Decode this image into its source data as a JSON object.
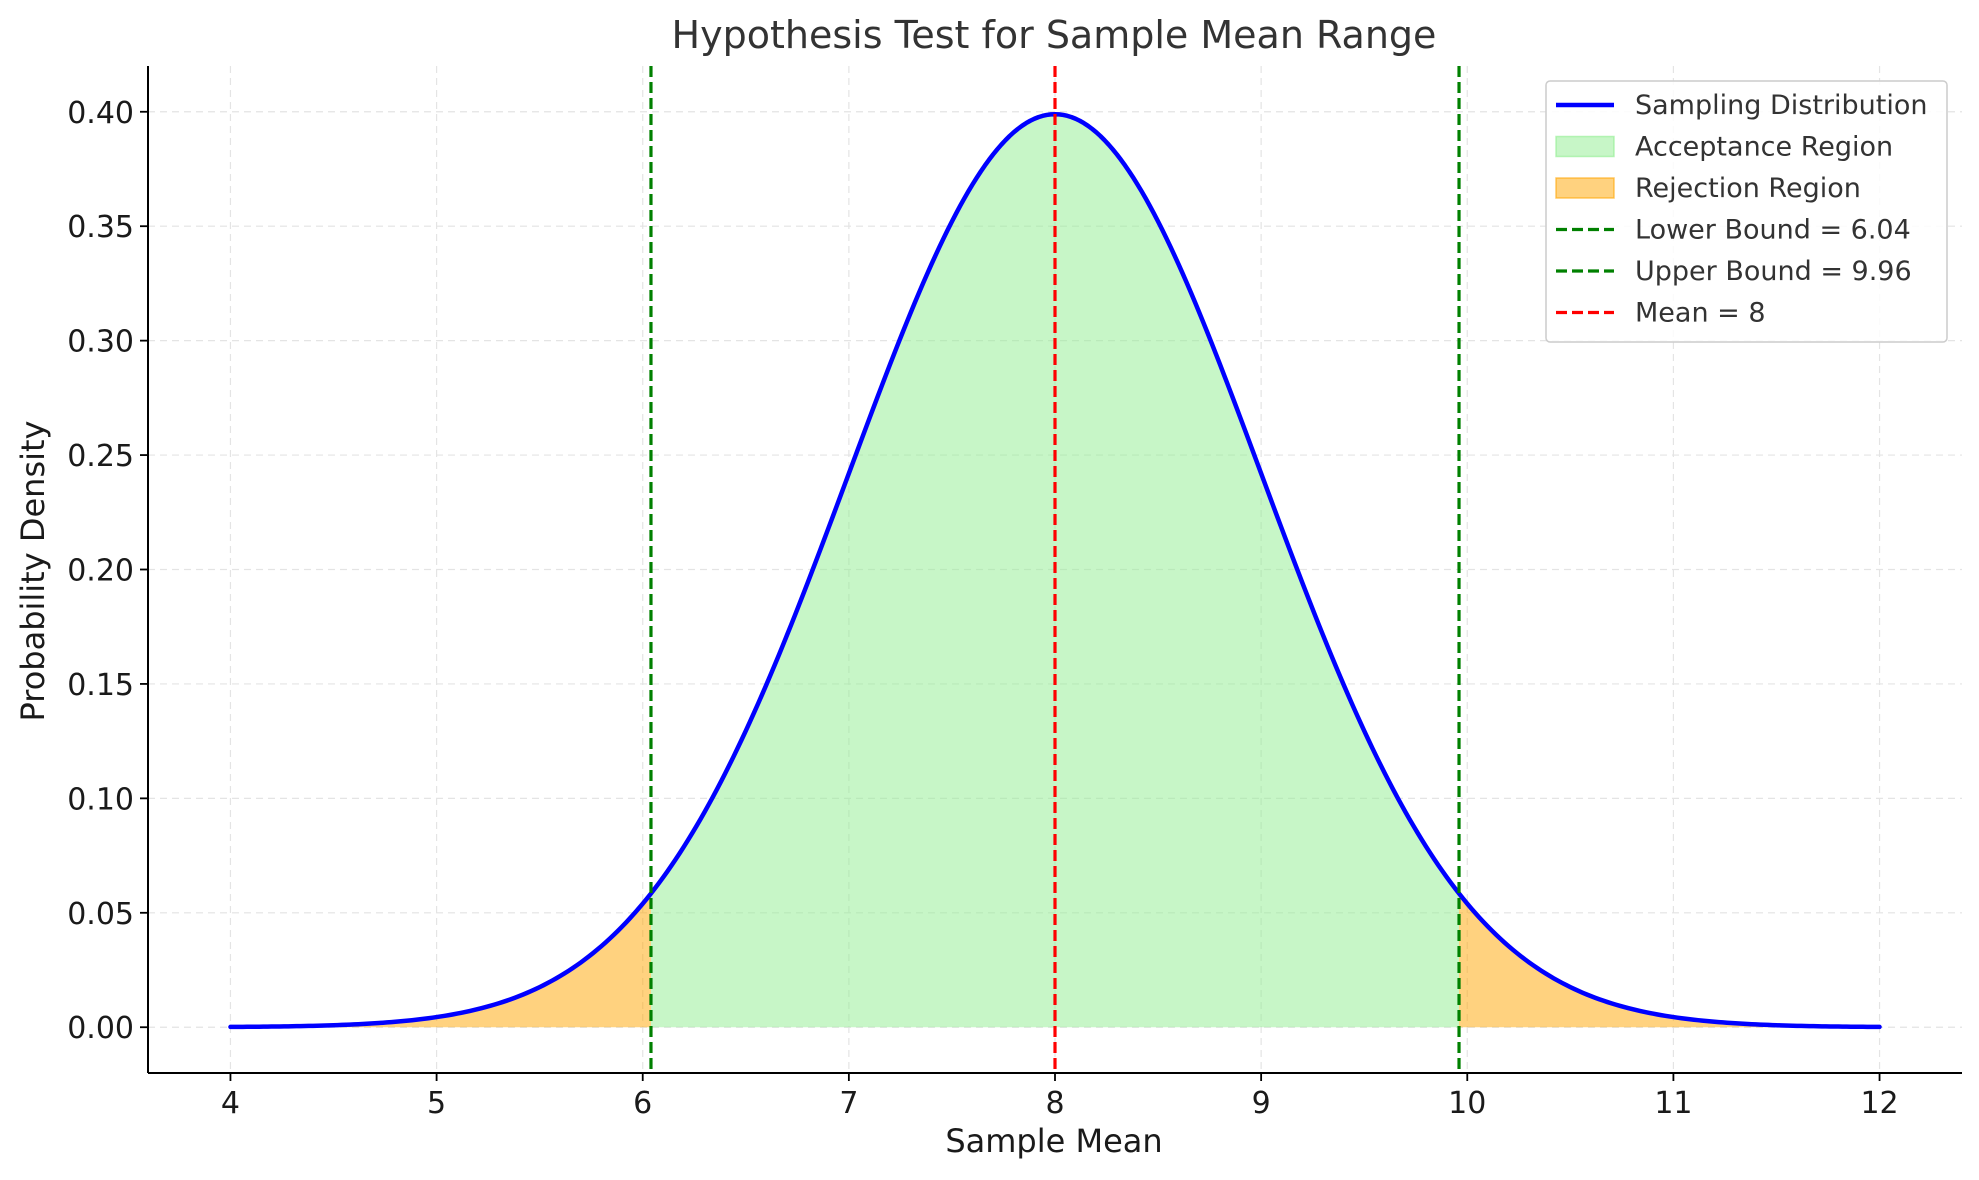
{
  "chart_data": {
    "type": "area",
    "title": "Hypothesis Test for Sample Mean Range",
    "xlabel": "Sample Mean",
    "ylabel": "Probability Density",
    "xlim": [
      3.6,
      12.4
    ],
    "ylim": [
      -0.02,
      0.42
    ],
    "xticks": [
      4,
      5,
      6,
      7,
      8,
      9,
      10,
      11,
      12
    ],
    "yticks": [
      0.0,
      0.05,
      0.1,
      0.15,
      0.2,
      0.25,
      0.3,
      0.35,
      0.4
    ],
    "grid": true,
    "legend_position": "top-right",
    "distribution": {
      "mean": 8,
      "std": 1,
      "x_range": [
        4,
        12
      ]
    },
    "lower_bound": 6.04,
    "upper_bound": 9.96,
    "series": [
      {
        "name": "Sampling Distribution",
        "kind": "line",
        "color": "#0000ff"
      },
      {
        "name": "Acceptance Region",
        "kind": "fill",
        "color": "#90ee90",
        "range": [
          6.04,
          9.96
        ]
      },
      {
        "name": "Rejection Region",
        "kind": "fill",
        "color": "#ffa500",
        "ranges": [
          [
            4,
            6.04
          ],
          [
            9.96,
            12
          ]
        ]
      },
      {
        "name": "Lower Bound = 6.04",
        "kind": "vline",
        "x": 6.04,
        "color": "#008000"
      },
      {
        "name": "Upper Bound = 9.96",
        "kind": "vline",
        "x": 9.96,
        "color": "#008000"
      },
      {
        "name": "Mean = 8",
        "kind": "vline",
        "x": 8,
        "color": "#ff0000"
      }
    ]
  }
}
